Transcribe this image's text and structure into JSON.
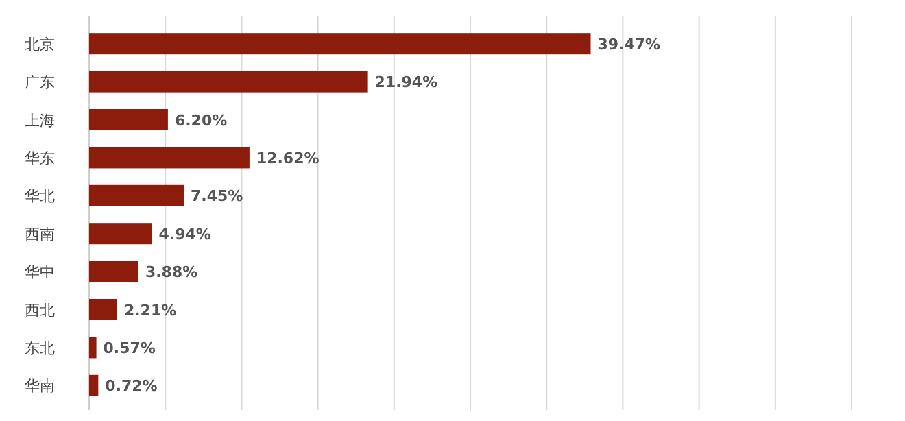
{
  "chart_data": {
    "type": "bar",
    "orientation": "horizontal",
    "categories": [
      "北京",
      "广东",
      "上海",
      "华东",
      "华北",
      "西南",
      "华中",
      "西北",
      "东北",
      "华南"
    ],
    "values": [
      39.47,
      21.94,
      6.2,
      12.62,
      7.45,
      4.94,
      3.88,
      2.21,
      0.57,
      0.72
    ],
    "value_labels": [
      "39.47%",
      "21.94%",
      "6.20%",
      "12.62%",
      "7.45%",
      "4.94%",
      "3.88%",
      "2.21%",
      "0.57%",
      "0.72%"
    ],
    "color": "#8c1c0c",
    "xlim": [
      0,
      60
    ],
    "xticks": [
      {
        "value": 0,
        "label": null
      },
      {
        "value": 6,
        "label": null
      },
      {
        "value": 12,
        "label": null
      },
      {
        "value": 18,
        "label": null
      },
      {
        "value": 24,
        "label": null
      },
      {
        "value": 30,
        "label": null
      },
      {
        "value": 36,
        "label": null
      },
      {
        "value": 42,
        "label": null
      },
      {
        "value": 48,
        "label": null
      },
      {
        "value": 54,
        "label": null
      },
      {
        "value": 60,
        "label": null
      }
    ],
    "grid": "x",
    "tick_labels": "y"
  }
}
